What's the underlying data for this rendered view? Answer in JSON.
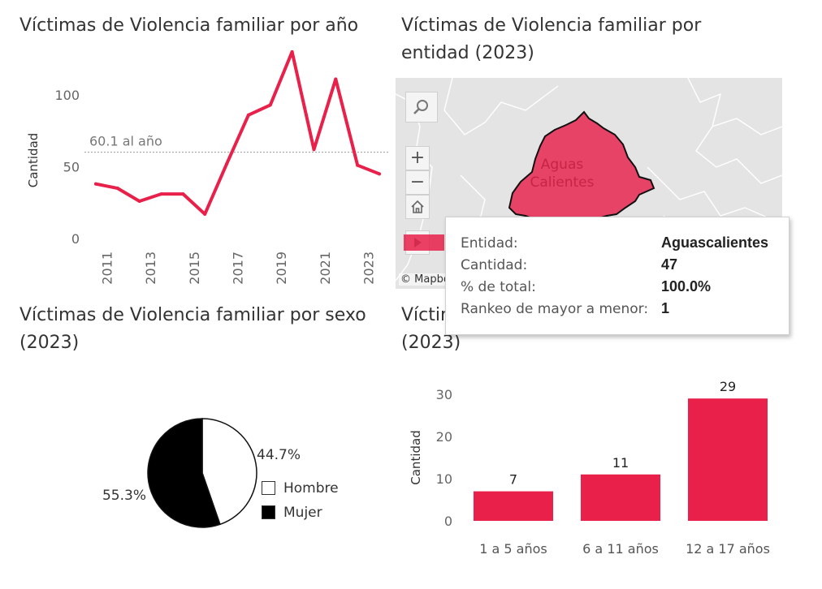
{
  "titles": {
    "por_ano": "Víctimas de Violencia familiar por año",
    "por_entidad": "Víctimas de Violencia familiar por entidad (2023)",
    "por_sexo": "Víctimas de Violencia familiar por sexo (2023)",
    "por_edad_partial": "Víctim",
    "por_edad_year": "(2023)"
  },
  "colors": {
    "accent": "#e8204a",
    "mujer": "#000000",
    "hombre": "#ffffff"
  },
  "chart_data": [
    {
      "type": "line",
      "title": "Víctimas de Violencia familiar por año",
      "ylabel": "Cantidad",
      "x": [
        2010.5,
        2011.5,
        2012.5,
        2013.5,
        2014.5,
        2015.5,
        2016.5,
        2017.5,
        2018.5,
        2019.5,
        2020.5,
        2021.5,
        2022.5,
        2023.5
      ],
      "values": [
        38,
        35,
        26,
        31,
        31,
        17,
        52,
        86,
        93,
        130,
        62,
        111,
        51,
        45
      ],
      "xticks": [
        "2011",
        "2013",
        "2015",
        "2017",
        "2019",
        "2021",
        "2023"
      ],
      "yticks": [
        "0",
        "50",
        "100"
      ],
      "ylim": [
        0,
        140
      ],
      "reference_value": 60.1,
      "reference_label": "60.1 al año"
    },
    {
      "type": "pie",
      "title": "Víctimas de Violencia familiar por sexo (2023)",
      "slices": [
        {
          "label": "Hombre",
          "value": 44.7,
          "label_text": "44.7%"
        },
        {
          "label": "Mujer",
          "value": 55.3,
          "label_text": "55.3%"
        }
      ]
    },
    {
      "type": "bar",
      "title": "(2023)",
      "ylabel": "Cantidad",
      "categories": [
        "1 a 5 años",
        "6 a 11 años",
        "12 a 17 años"
      ],
      "values": [
        7,
        11,
        29
      ],
      "value_labels": [
        "7",
        "11",
        "29"
      ],
      "yticks": [
        "0",
        "10",
        "20",
        "30"
      ],
      "ylim": [
        0,
        32
      ]
    }
  ],
  "map": {
    "region_label": "Aguas Calientes",
    "attribution": "© Mapbox",
    "tools": {
      "search": "search-icon",
      "zoom_in": "+",
      "zoom_out": "−",
      "home": "home-icon",
      "play": "play-icon"
    }
  },
  "tooltip": {
    "rows": [
      {
        "key": "Entidad:",
        "value": "Aguascalientes"
      },
      {
        "key": "Cantidad:",
        "value": "47"
      },
      {
        "key": "% de total:",
        "value": "100.0%"
      },
      {
        "key": "Rankeo de mayor a menor:",
        "value": "1"
      }
    ]
  }
}
